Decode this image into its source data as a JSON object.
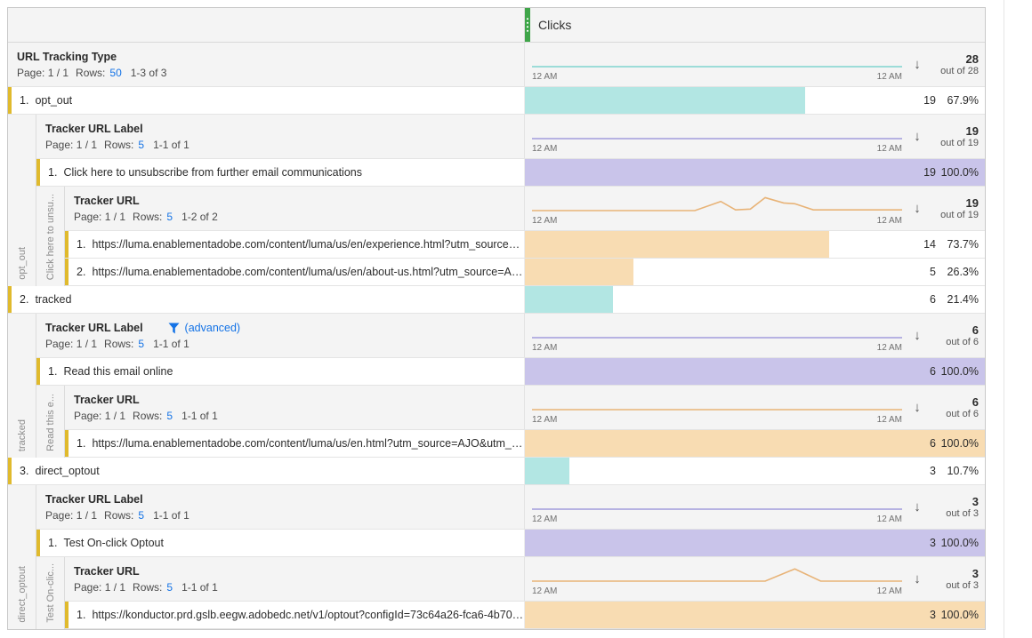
{
  "accents": {
    "green_handle": "#3fa549",
    "yellow_accent": "#e0ba2d",
    "teal_bar": "#b2e6e3",
    "purple_bar": "#c9c4ea",
    "orange_bar": "#f8dcb2",
    "blue_link": "#1473e6"
  },
  "metric_header": {
    "label": "Clicks"
  },
  "common": {
    "page": "Page: 1 / 1",
    "rows_label": "Rows:",
    "time": "12 AM",
    "sort_icon": "↓"
  },
  "root": {
    "name": "URL Tracking Type",
    "rows_n": "50",
    "range": "1-3 of 3",
    "total": "28",
    "outof": "out of 28"
  },
  "g1": {
    "item": {
      "num": "1.",
      "label": "opt_out",
      "value": "19",
      "pct": "67.9%",
      "bar": 67.9
    },
    "side": "opt_out",
    "l1": {
      "name": "Tracker URL Label",
      "rows_n": "5",
      "range": "1-1 of 1",
      "total": "19",
      "outof": "out of 19"
    },
    "l1_item": {
      "num": "1.",
      "label": "Click here to unsubscribe from further email communications",
      "value": "19",
      "pct": "100.0%",
      "bar": 100
    },
    "side2": "Click here to unsu...",
    "l2": {
      "name": "Tracker URL",
      "rows_n": "5",
      "range": "1-2 of 2",
      "total": "19",
      "outof": "out of 19"
    },
    "l2_item1": {
      "num": "1.",
      "label": "https://luma.enablementadobe.com/content/luma/us/en/experience.html?utm_source=A...",
      "value": "14",
      "pct": "73.7%",
      "bar": 73.7
    },
    "l2_item2": {
      "num": "2.",
      "label": "https://luma.enablementadobe.com/content/luma/us/en/about-us.html?utm_source=AJ...",
      "value": "5",
      "pct": "26.3%",
      "bar": 26.3
    }
  },
  "g2": {
    "item": {
      "num": "2.",
      "label": "tracked",
      "value": "6",
      "pct": "21.4%",
      "bar": 21.4
    },
    "side": "tracked",
    "l1": {
      "name": "Tracker URL Label",
      "advanced": "(advanced)",
      "rows_n": "5",
      "range": "1-1 of 1",
      "total": "6",
      "outof": "out of 6"
    },
    "l1_item": {
      "num": "1.",
      "label": "Read this email online",
      "value": "6",
      "pct": "100.0%",
      "bar": 100
    },
    "side2": "Read this e...",
    "l2": {
      "name": "Tracker URL",
      "rows_n": "5",
      "range": "1-1 of 1",
      "total": "6",
      "outof": "out of 6"
    },
    "l2_item1": {
      "num": "1.",
      "label": "https://luma.enablementadobe.com/content/luma/us/en.html?utm_source=AJO&utm_m...",
      "value": "6",
      "pct": "100.0%",
      "bar": 100
    }
  },
  "g3": {
    "item": {
      "num": "3.",
      "label": "direct_optout",
      "value": "3",
      "pct": "10.7%",
      "bar": 10.7
    },
    "side": "direct_optout",
    "l1": {
      "name": "Tracker URL Label",
      "rows_n": "5",
      "range": "1-1 of 1",
      "total": "3",
      "outof": "out of 3"
    },
    "l1_item": {
      "num": "1.",
      "label": "Test On-click Optout",
      "value": "3",
      "pct": "100.0%",
      "bar": 100
    },
    "side2": "Test On-clic...",
    "l2": {
      "name": "Tracker URL",
      "rows_n": "5",
      "range": "1-1 of 1",
      "total": "3",
      "outof": "out of 3"
    },
    "l2_item1": {
      "num": "1.",
      "label": "https://konductor.prd.gslb.eegw.adobedc.net/v1/optout?configId=73c64a26-fca6-4b70-970...",
      "value": "3",
      "pct": "100.0%",
      "bar": 100
    }
  },
  "sparklines": {
    "root": {
      "color": "#7fd4ce",
      "points": [
        [
          0,
          21
        ],
        [
          100,
          21
        ]
      ]
    },
    "g1_l1": {
      "color": "#a29bdb",
      "points": [
        [
          0,
          21
        ],
        [
          100,
          21
        ]
      ]
    },
    "g1_l2": {
      "color": "#e8b377",
      "points": [
        [
          0,
          21
        ],
        [
          44,
          21
        ],
        [
          51,
          9
        ],
        [
          55,
          20
        ],
        [
          59,
          19
        ],
        [
          63,
          4
        ],
        [
          68,
          11
        ],
        [
          71,
          12
        ],
        [
          76,
          20
        ],
        [
          100,
          20
        ]
      ]
    },
    "g2_l1": {
      "color": "#a29bdb",
      "points": [
        [
          0,
          21
        ],
        [
          100,
          21
        ]
      ]
    },
    "g2_l2": {
      "color": "#e8b377",
      "points": [
        [
          0,
          21
        ],
        [
          100,
          21
        ]
      ]
    },
    "g3_l1": {
      "color": "#a29bdb",
      "points": [
        [
          0,
          21
        ],
        [
          100,
          21
        ]
      ]
    },
    "g3_l2": {
      "color": "#e8b377",
      "points": [
        [
          0,
          21
        ],
        [
          63,
          21
        ],
        [
          71,
          5
        ],
        [
          78,
          21
        ],
        [
          100,
          21
        ]
      ]
    }
  }
}
